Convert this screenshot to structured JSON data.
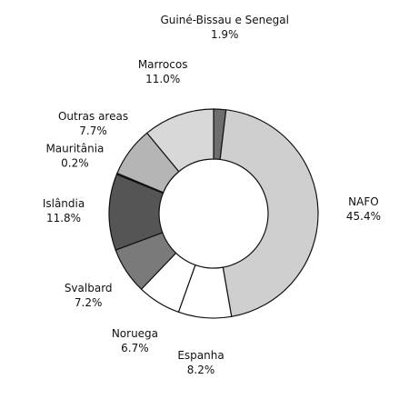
{
  "chart_data": {
    "type": "donut",
    "categories": [
      "Guiné-Bissau e Senegal",
      "NAFO",
      "Espanha",
      "Noruega",
      "Svalbard",
      "Islândia",
      "Mauritânia",
      "Outras areas",
      "Marrocos"
    ],
    "values": [
      1.9,
      45.4,
      8.2,
      6.7,
      7.2,
      11.8,
      0.2,
      7.7,
      11.0
    ],
    "value_labels": [
      "1.9%",
      "45.4%",
      "8.2%",
      "6.7%",
      "7.2%",
      "11.8%",
      "0.2%",
      "7.7%",
      "11.0%"
    ],
    "colors": [
      "#6e6e6e",
      "#cfcfcf",
      "#ffffff",
      "#ffffff",
      "#7a7a7a",
      "#555555",
      "#9a9a9a",
      "#b5b5b5",
      "#d8d8d8"
    ]
  }
}
